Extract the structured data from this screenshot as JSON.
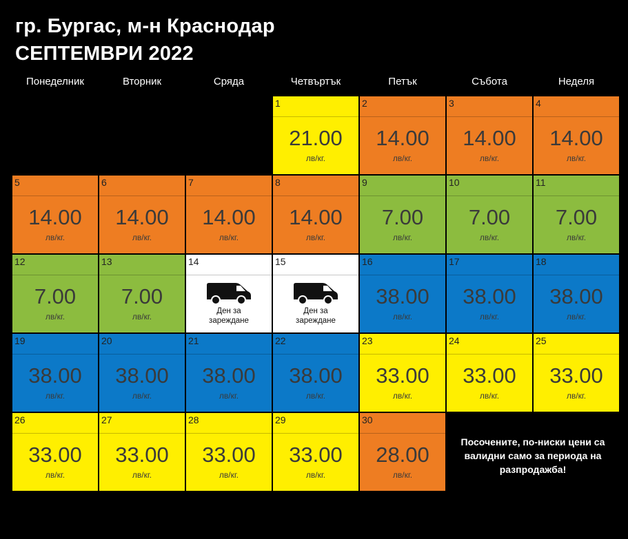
{
  "title_line1": "гр. Бургас, м-н Краснодар",
  "title_line2": "СЕПТЕМВРИ 2022",
  "weekdays": [
    "Понеделник",
    "Вторник",
    "Сряда",
    "Четвъртък",
    "Петък",
    "Събота",
    "Неделя"
  ],
  "unit": "лв/кг.",
  "loading_day_label": "Ден за зареждане",
  "colors": {
    "orange": "#ee7d22",
    "yellow": "#ffef00",
    "green": "#8cbc3f",
    "blue": "#0c79c8",
    "white": "#ffffff"
  },
  "days": [
    {
      "day": "1",
      "price": "21.00",
      "color": "yellow"
    },
    {
      "day": "2",
      "price": "14.00",
      "color": "orange"
    },
    {
      "day": "3",
      "price": "14.00",
      "color": "orange"
    },
    {
      "day": "4",
      "price": "14.00",
      "color": "orange"
    },
    {
      "day": "5",
      "price": "14.00",
      "color": "orange"
    },
    {
      "day": "6",
      "price": "14.00",
      "color": "orange"
    },
    {
      "day": "7",
      "price": "14.00",
      "color": "orange"
    },
    {
      "day": "8",
      "price": "14.00",
      "color": "orange"
    },
    {
      "day": "9",
      "price": "7.00",
      "color": "green"
    },
    {
      "day": "10",
      "price": "7.00",
      "color": "green"
    },
    {
      "day": "11",
      "price": "7.00",
      "color": "green"
    },
    {
      "day": "12",
      "price": "7.00",
      "color": "green"
    },
    {
      "day": "13",
      "price": "7.00",
      "color": "green"
    },
    {
      "day": "14",
      "price": null,
      "color": "white",
      "icon": "van-icon"
    },
    {
      "day": "15",
      "price": null,
      "color": "white",
      "icon": "van-icon"
    },
    {
      "day": "16",
      "price": "38.00",
      "color": "blue"
    },
    {
      "day": "17",
      "price": "38.00",
      "color": "blue"
    },
    {
      "day": "18",
      "price": "38.00",
      "color": "blue"
    },
    {
      "day": "19",
      "price": "38.00",
      "color": "blue"
    },
    {
      "day": "20",
      "price": "38.00",
      "color": "blue"
    },
    {
      "day": "21",
      "price": "38.00",
      "color": "blue"
    },
    {
      "day": "22",
      "price": "38.00",
      "color": "blue"
    },
    {
      "day": "23",
      "price": "33.00",
      "color": "yellow"
    },
    {
      "day": "24",
      "price": "33.00",
      "color": "yellow"
    },
    {
      "day": "25",
      "price": "33.00",
      "color": "yellow"
    },
    {
      "day": "26",
      "price": "33.00",
      "color": "yellow"
    },
    {
      "day": "27",
      "price": "33.00",
      "color": "yellow"
    },
    {
      "day": "28",
      "price": "33.00",
      "color": "yellow"
    },
    {
      "day": "29",
      "price": "33.00",
      "color": "yellow"
    },
    {
      "day": "30",
      "price": "28.00",
      "color": "orange"
    }
  ],
  "note": "Посочените, по-ниски цени са валидни само за периода на разпродажба!"
}
